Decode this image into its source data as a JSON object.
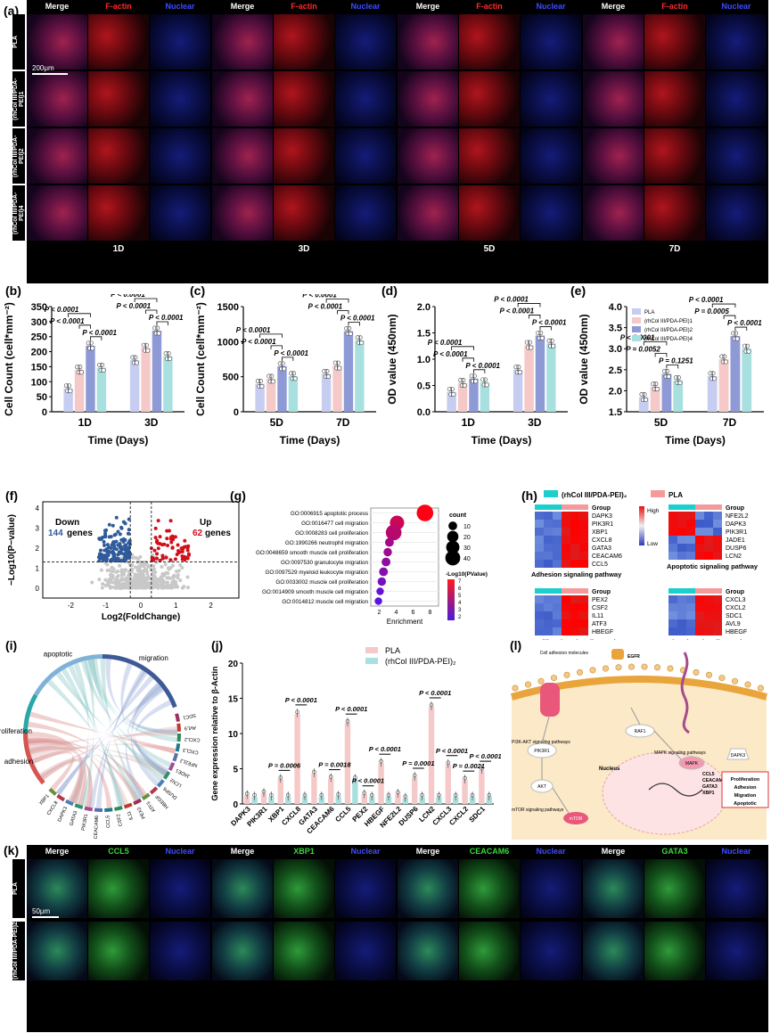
{
  "panel_labels": [
    "(a)",
    "(b)",
    "(c)",
    "(d)",
    "(e)",
    "(f)",
    "(g)",
    "(h)",
    "(i)",
    "(j)",
    "(k)",
    "(l)"
  ],
  "panel_a": {
    "channel_headers": [
      "Merge",
      "F-actin",
      "Nuclear"
    ],
    "rows": [
      "PLA",
      "(rhCol III/PDA-PEI)1",
      "(rhCol III/PDA-PEI)2",
      "(rhCol III/PDA-PEI)4"
    ],
    "days": [
      "1D",
      "3D",
      "5D",
      "7D"
    ],
    "scale_bar": "200μm"
  },
  "colors": {
    "c1": "#c7cdf0",
    "c2": "#f6c9c9",
    "c3": "#8e9ad6",
    "c4": "#a8e0e0",
    "red": "#d10f1b",
    "blue": "#2f5b9b",
    "teal": "#1ccfcf",
    "salmon": "#f59a9a"
  },
  "panel_b": {
    "chart_data": {
      "type": "bar",
      "categories": [
        "1D",
        "3D"
      ],
      "xlabel": "Time (Days)",
      "ylabel": "Cell Count (cell*mm⁻²)",
      "ylim": [
        0,
        350
      ],
      "yticks": [
        0,
        50,
        100,
        150,
        200,
        250,
        300,
        350
      ],
      "series": [
        {
          "values": [
            78,
            172
          ]
        },
        {
          "values": [
            140,
            213
          ]
        },
        {
          "values": [
            220,
            270
          ]
        },
        {
          "values": [
            147,
            185
          ]
        }
      ],
      "annotations": [
        "P < 0.0001",
        "P < 0.0001",
        "P < 0.0001",
        "P < 0.0001",
        "P < 0.0001",
        "P < 0.0001"
      ]
    }
  },
  "panel_c": {
    "chart_data": {
      "type": "bar",
      "categories": [
        "5D",
        "7D"
      ],
      "xlabel": "Time (Days)",
      "ylabel": "Cell Count (cell*mm⁻²)",
      "ylim": [
        0,
        1500
      ],
      "yticks": [
        0,
        500,
        1000,
        1500
      ],
      "series": [
        {
          "values": [
            400,
            540
          ]
        },
        {
          "values": [
            470,
            660
          ]
        },
        {
          "values": [
            650,
            1150
          ]
        },
        {
          "values": [
            510,
            1020
          ]
        }
      ],
      "annotations": [
        "P < 0.0001",
        "P < 0.0001",
        "P < 0.0001",
        "P < 0.0001",
        "P < 0.0001",
        "P < 0.0001"
      ]
    }
  },
  "panel_d": {
    "chart_data": {
      "type": "bar",
      "categories": [
        "1D",
        "3D"
      ],
      "xlabel": "Time (Days)",
      "ylabel": "OD value (450nm)",
      "ylim": [
        0,
        2.0
      ],
      "yticks": [
        "0.0",
        "0.5",
        "1.0",
        "1.5",
        "2.0"
      ],
      "series": [
        {
          "values": [
            0.38,
            0.8
          ]
        },
        {
          "values": [
            0.55,
            1.27
          ]
        },
        {
          "values": [
            0.63,
            1.45
          ]
        },
        {
          "values": [
            0.56,
            1.3
          ]
        }
      ],
      "annotations": [
        "P < 0.0001",
        "P < 0.0001",
        "P < 0.0001",
        "P < 0.0001",
        "P < 0.0001",
        "P < 0.0001"
      ]
    }
  },
  "panel_e": {
    "chart_data": {
      "type": "bar",
      "categories": [
        "5D",
        "7D"
      ],
      "xlabel": "Time (Days)",
      "ylabel": "OD value (450nm)",
      "ylim": [
        1.5,
        4.0
      ],
      "yticks": [
        "1.5",
        "2.0",
        "2.5",
        "3.0",
        "3.5",
        "4.0"
      ],
      "series": [
        {
          "name": "PLA",
          "values": [
            1.85,
            2.35
          ]
        },
        {
          "name": "(rhCol III/PDA-PEI)1",
          "values": [
            2.1,
            2.75
          ]
        },
        {
          "name": "(rhCol III/PDA-PEI)2",
          "values": [
            2.4,
            3.3
          ]
        },
        {
          "name": "(rhCol III/PDA-PEI)4",
          "values": [
            2.25,
            3.0
          ]
        }
      ],
      "annotations": [
        "P < 0.0001",
        "P = 0.0052",
        "P = 0.1251",
        "P < 0.0001",
        "P = 0.0005",
        "P < 0.0001"
      ]
    }
  },
  "panel_f": {
    "chart_data": {
      "type": "scatter",
      "xlabel": "Log2(FoldChange)",
      "ylabel": "−Log10(P−value)",
      "xticks": [
        "-2",
        "-1",
        "0",
        "1",
        "2"
      ],
      "yticks": [
        "0",
        "1",
        "2",
        "3",
        "4"
      ],
      "down_label": "Down",
      "down_count": "144",
      "up_label": "Up",
      "up_count": "62",
      "genes_label": "genes"
    }
  },
  "panel_g": {
    "chart_data": {
      "type": "scatter",
      "xlabel": "Enrichment",
      "xticks": [
        "2",
        "4",
        "6",
        "8"
      ],
      "terms": [
        {
          "label": "GO:0006915 apoptotic process",
          "x": 7.4,
          "count": 40,
          "p": 7
        },
        {
          "label": "GO:0016477 cell migration",
          "x": 4.1,
          "count": 28,
          "p": 5.5
        },
        {
          "label": "GO:0008283 cell proliferation",
          "x": 3.7,
          "count": 35,
          "p": 5
        },
        {
          "label": "GO:1990266 neutrophil migration",
          "x": 3.2,
          "count": 8,
          "p": 4.4
        },
        {
          "label": "GO:0048659 smooth muscle cell proliferation",
          "x": 3.0,
          "count": 7,
          "p": 4.2
        },
        {
          "label": "GO:0097530 granulocyte migration",
          "x": 2.8,
          "count": 8,
          "p": 3.8
        },
        {
          "label": "GO:0097529 myeloid leukocyte migration",
          "x": 2.5,
          "count": 8,
          "p": 3.5
        },
        {
          "label": "GO:0033002 muscle cell proliferation",
          "x": 2.3,
          "count": 7,
          "p": 3.1
        },
        {
          "label": "GO:0014909 smooth muscle cell migration",
          "x": 2.1,
          "count": 5,
          "p": 2.6
        },
        {
          "label": "GO:0014812 muscle cell migration",
          "x": 1.9,
          "count": 5,
          "p": 2.3
        }
      ],
      "count_title": "count",
      "count_ticks": [
        "10",
        "20",
        "30",
        "40"
      ],
      "p_title": "-Log10(PValue)",
      "p_ticks": [
        "7",
        "6",
        "5",
        "4",
        "3",
        "2"
      ]
    }
  },
  "panel_h": {
    "legend_left": "(rhCol III/PDA-PEI)₂",
    "legend_right": "PLA",
    "group": "Group",
    "high": "High",
    "low": "Low",
    "heatmaps": [
      {
        "title": "Adhesion signaling pathway",
        "genes": [
          "DAPK3",
          "PIK3R1",
          "XBP1",
          "CXCL8",
          "GATA3",
          "CEACAM6",
          "CCL5"
        ]
      },
      {
        "title": "Apoptotic signaling pathway",
        "genes": [
          "NFE2L2",
          "DAPK3",
          "PIK3R1",
          "JADE1",
          "DUSP6",
          "LCN2"
        ]
      },
      {
        "title": "Proliferation signaling pathway",
        "genes": [
          "PEX2",
          "CSF2",
          "IL11",
          "ATF3",
          "HBEGF"
        ]
      },
      {
        "title": "Migration signaling pathway",
        "genes": [
          "CXCL3",
          "CXCL2",
          "SDC1",
          "AVL9",
          "HBEGF"
        ]
      }
    ]
  },
  "panel_i": {
    "sectors": [
      "proliferation",
      "apoptotic",
      "migration",
      "adhesion"
    ],
    "genes": [
      "SDC1",
      "AVL9",
      "CXCL2",
      "CXCL3",
      "NFE2L2",
      "JADE1",
      "LCN2",
      "DUSP6",
      "HBEGF",
      "ATF3",
      "PEX2",
      "IL11",
      "CSF2",
      "CCL5",
      "CEACAM6",
      "PIK3R1",
      "GATA3",
      "DAPK3",
      "CXCL8",
      "XBP1"
    ]
  },
  "panel_j": {
    "chart_data": {
      "type": "bar",
      "ylabel": "Gene expression relative to β-Actin",
      "ylim": [
        0,
        20
      ],
      "yticks": [
        "0",
        "5",
        "10",
        "15",
        "20"
      ],
      "categories": [
        "DAPK3",
        "PIK3R1",
        "XBP1",
        "CXCL8",
        "GATA3",
        "CEACAM6",
        "CCL5",
        "PEX2",
        "HBEGF",
        "NFE2L2",
        "DUSP6",
        "LCN2",
        "CXCL3",
        "CXCL2",
        "SDC1"
      ],
      "series": [
        {
          "name": "PLA",
          "values": [
            1.2,
            1.5,
            3.5,
            12.8,
            4.3,
            3.6,
            11.5,
            1.3,
            5.8,
            1.4,
            3.8,
            13.8,
            5.6,
            3.4,
            4.8
          ]
        },
        {
          "name": "(rhCol III/PDA-PEI)₂",
          "values": [
            1,
            1,
            1,
            1,
            1,
            1.1,
            3.5,
            1,
            1,
            0.8,
            1,
            1,
            1,
            1,
            1
          ]
        }
      ],
      "annotations": [
        "P = 0.0006",
        "P < 0.0001",
        "P = 0.0018",
        "P < 0.0001",
        "P < 0.0001",
        "P < 0.0001",
        "P = 0.0001",
        "P < 0.0001",
        "P < 0.0001",
        "P = 0.0021",
        "P < 0.0001"
      ]
    }
  },
  "panel_l": {
    "labels": [
      "Cell adhesion molecules",
      "EGFR",
      "PI3K-AKT signaling pathways",
      "PIK3R1",
      "RAF1",
      "MAPK signaling pathways",
      "MAPK",
      "DAPK3",
      "Nucleus",
      "AKT",
      "mTOR signaling pathways",
      "mTOR",
      "CCL5",
      "CEACAM6",
      "GATA3",
      "XBP1"
    ],
    "outcomes": [
      "Proliferation",
      "Adhesion",
      "Migration",
      "Apoptotic"
    ]
  },
  "panel_k": {
    "headers": [
      "Merge",
      "CCL5",
      "Nuclear",
      "Merge",
      "XBP1",
      "Nuclear",
      "Merge",
      "CEACAM6",
      "Nuclear",
      "Merge",
      "GATA3",
      "Nuclear"
    ],
    "rows": [
      "PLA",
      "(rhCol III/PDA-PEI)2"
    ],
    "scale_bar": "50μm"
  }
}
